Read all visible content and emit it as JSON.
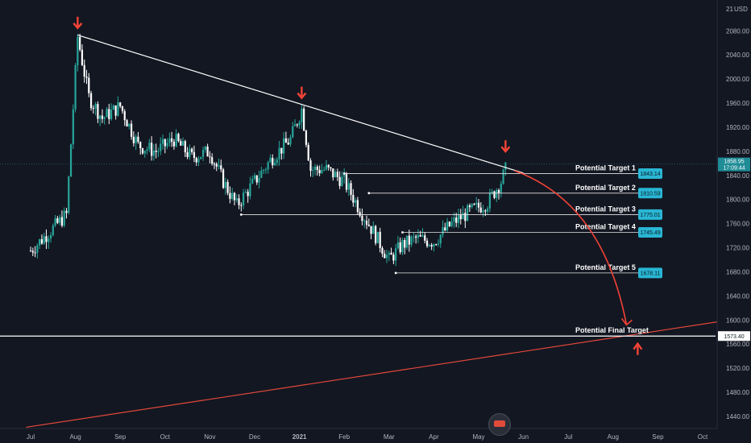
{
  "chart_data": {
    "type": "candlestick",
    "currency": "USD",
    "ylim": [
      1420,
      2120
    ],
    "y_ticks": [
      1440,
      1480,
      1520,
      1560,
      1600,
      1640,
      1680,
      1720,
      1760,
      1800,
      1840,
      1880,
      1920,
      1960,
      2000,
      2040,
      2080
    ],
    "y_tick_labels": [
      "1440.00",
      "1480.00",
      "1520.00",
      "1560.00",
      "1600.00",
      "1640.00",
      "1680.00",
      "1720.00",
      "1760.00",
      "1800.00",
      "1840.00",
      "1880.00",
      "1920.00",
      "1960.00",
      "2000.00",
      "2040.00",
      "2080.00"
    ],
    "top_partial_label": "21",
    "x_tick_labels": [
      "Jul",
      "Aug",
      "Sep",
      "Oct",
      "Nov",
      "Dec",
      "2021",
      "Feb",
      "Mar",
      "Apr",
      "May",
      "Jun",
      "Jul",
      "Aug",
      "Sep",
      "Oct"
    ],
    "x_tick_months": [
      0,
      1,
      2,
      3,
      4,
      5,
      6,
      7,
      8,
      9,
      10,
      11,
      12,
      13,
      14,
      15
    ],
    "price_path": [
      [
        0,
        1715
      ],
      [
        0.4,
        1745
      ],
      [
        0.8,
        1775
      ],
      [
        1.05,
        2070
      ],
      [
        1.3,
        1970
      ],
      [
        1.6,
        1935
      ],
      [
        2.0,
        1955
      ],
      [
        2.4,
        1890
      ],
      [
        2.8,
        1880
      ],
      [
        3.2,
        1900
      ],
      [
        3.6,
        1870
      ],
      [
        4.0,
        1880
      ],
      [
        4.3,
        1830
      ],
      [
        4.6,
        1790
      ],
      [
        5.0,
        1830
      ],
      [
        5.4,
        1870
      ],
      [
        5.8,
        1900
      ],
      [
        6.05,
        1950
      ],
      [
        6.25,
        1850
      ],
      [
        6.6,
        1850
      ],
      [
        7.0,
        1830
      ],
      [
        7.3,
        1790
      ],
      [
        7.7,
        1740
      ],
      [
        8.0,
        1700
      ],
      [
        8.3,
        1725
      ],
      [
        8.6,
        1735
      ],
      [
        9.0,
        1730
      ],
      [
        9.4,
        1760
      ],
      [
        9.8,
        1780
      ],
      [
        10.2,
        1795
      ],
      [
        10.5,
        1830
      ],
      [
        10.65,
        1858.95
      ]
    ],
    "current_price": "1858.95",
    "current_price_time": "17:09:44",
    "final_target_price": "1573.40",
    "resistance_line": {
      "from": [
        1.05,
        2073
      ],
      "to": [
        11.0,
        1844
      ]
    },
    "support_line": {
      "from": [
        -0.1,
        1422
      ],
      "to": [
        15.6,
        1600
      ]
    },
    "top_markers": [
      [
        1.05,
        2090
      ],
      [
        6.05,
        1974
      ],
      [
        10.6,
        1885
      ]
    ],
    "bottom_marker": [
      13.55,
      1558
    ],
    "targets": [
      {
        "label": "Potential Target 1",
        "value": "1843.14",
        "price": 1843.14,
        "from_month": 7.0
      },
      {
        "label": "Potential Target 2",
        "value": "1810.59",
        "price": 1810.59,
        "from_month": 7.55
      },
      {
        "label": "Potential Target 3",
        "value": "1775.01",
        "price": 1775.01,
        "from_month": 4.7
      },
      {
        "label": "Potential Target 4",
        "value": "1745.49",
        "price": 1745.49,
        "from_month": 8.3
      },
      {
        "label": "Potential Target 5",
        "value": "1678.11",
        "price": 1678.11,
        "from_month": 8.15
      }
    ],
    "final_target_label": "Potential Final Target",
    "curve_arrow": {
      "from": [
        10.8,
        1848
      ],
      "to": [
        13.3,
        1592
      ]
    },
    "colors": {
      "background": "#131722",
      "up": "#26a69a",
      "down": "#ffffff",
      "trend": "#ffffff",
      "support": "#e5483a",
      "arrow": "#f44336",
      "target_tag": "#29b6d4",
      "current_tag": "#1f8c96",
      "final_line": "#ffffff"
    }
  }
}
